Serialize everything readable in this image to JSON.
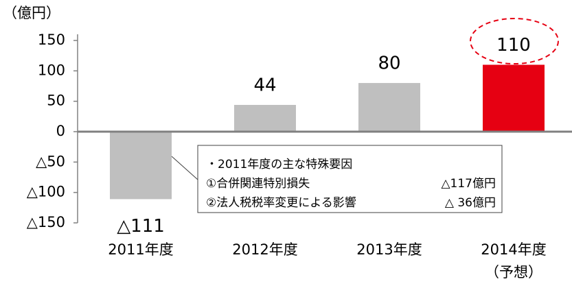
{
  "chart_data": {
    "type": "bar",
    "y_axis_label": "（億円）",
    "categories": [
      "2011年度",
      "2012年度",
      "2013年度",
      "2014年度\n（予想）"
    ],
    "values": [
      -111,
      44,
      80,
      110
    ],
    "value_labels": [
      "△111",
      "44",
      "80",
      "110"
    ],
    "colors": [
      "#bfbfbf",
      "#bfbfbf",
      "#bfbfbf",
      "#e60012"
    ],
    "ylim": [
      -150,
      150
    ],
    "yticks": [
      {
        "value": -150,
        "label": "△150"
      },
      {
        "value": -100,
        "label": "△100"
      },
      {
        "value": -50,
        "label": "△50"
      },
      0,
      50,
      100,
      150
    ],
    "annotation": {
      "title": "・2011年度の主な特殊要因",
      "items": [
        {
          "label": "①合併関連特別損失",
          "value": "△117億円"
        },
        {
          "label": "②法人税税率変更による影響",
          "value": "△ 36億円"
        }
      ]
    }
  }
}
